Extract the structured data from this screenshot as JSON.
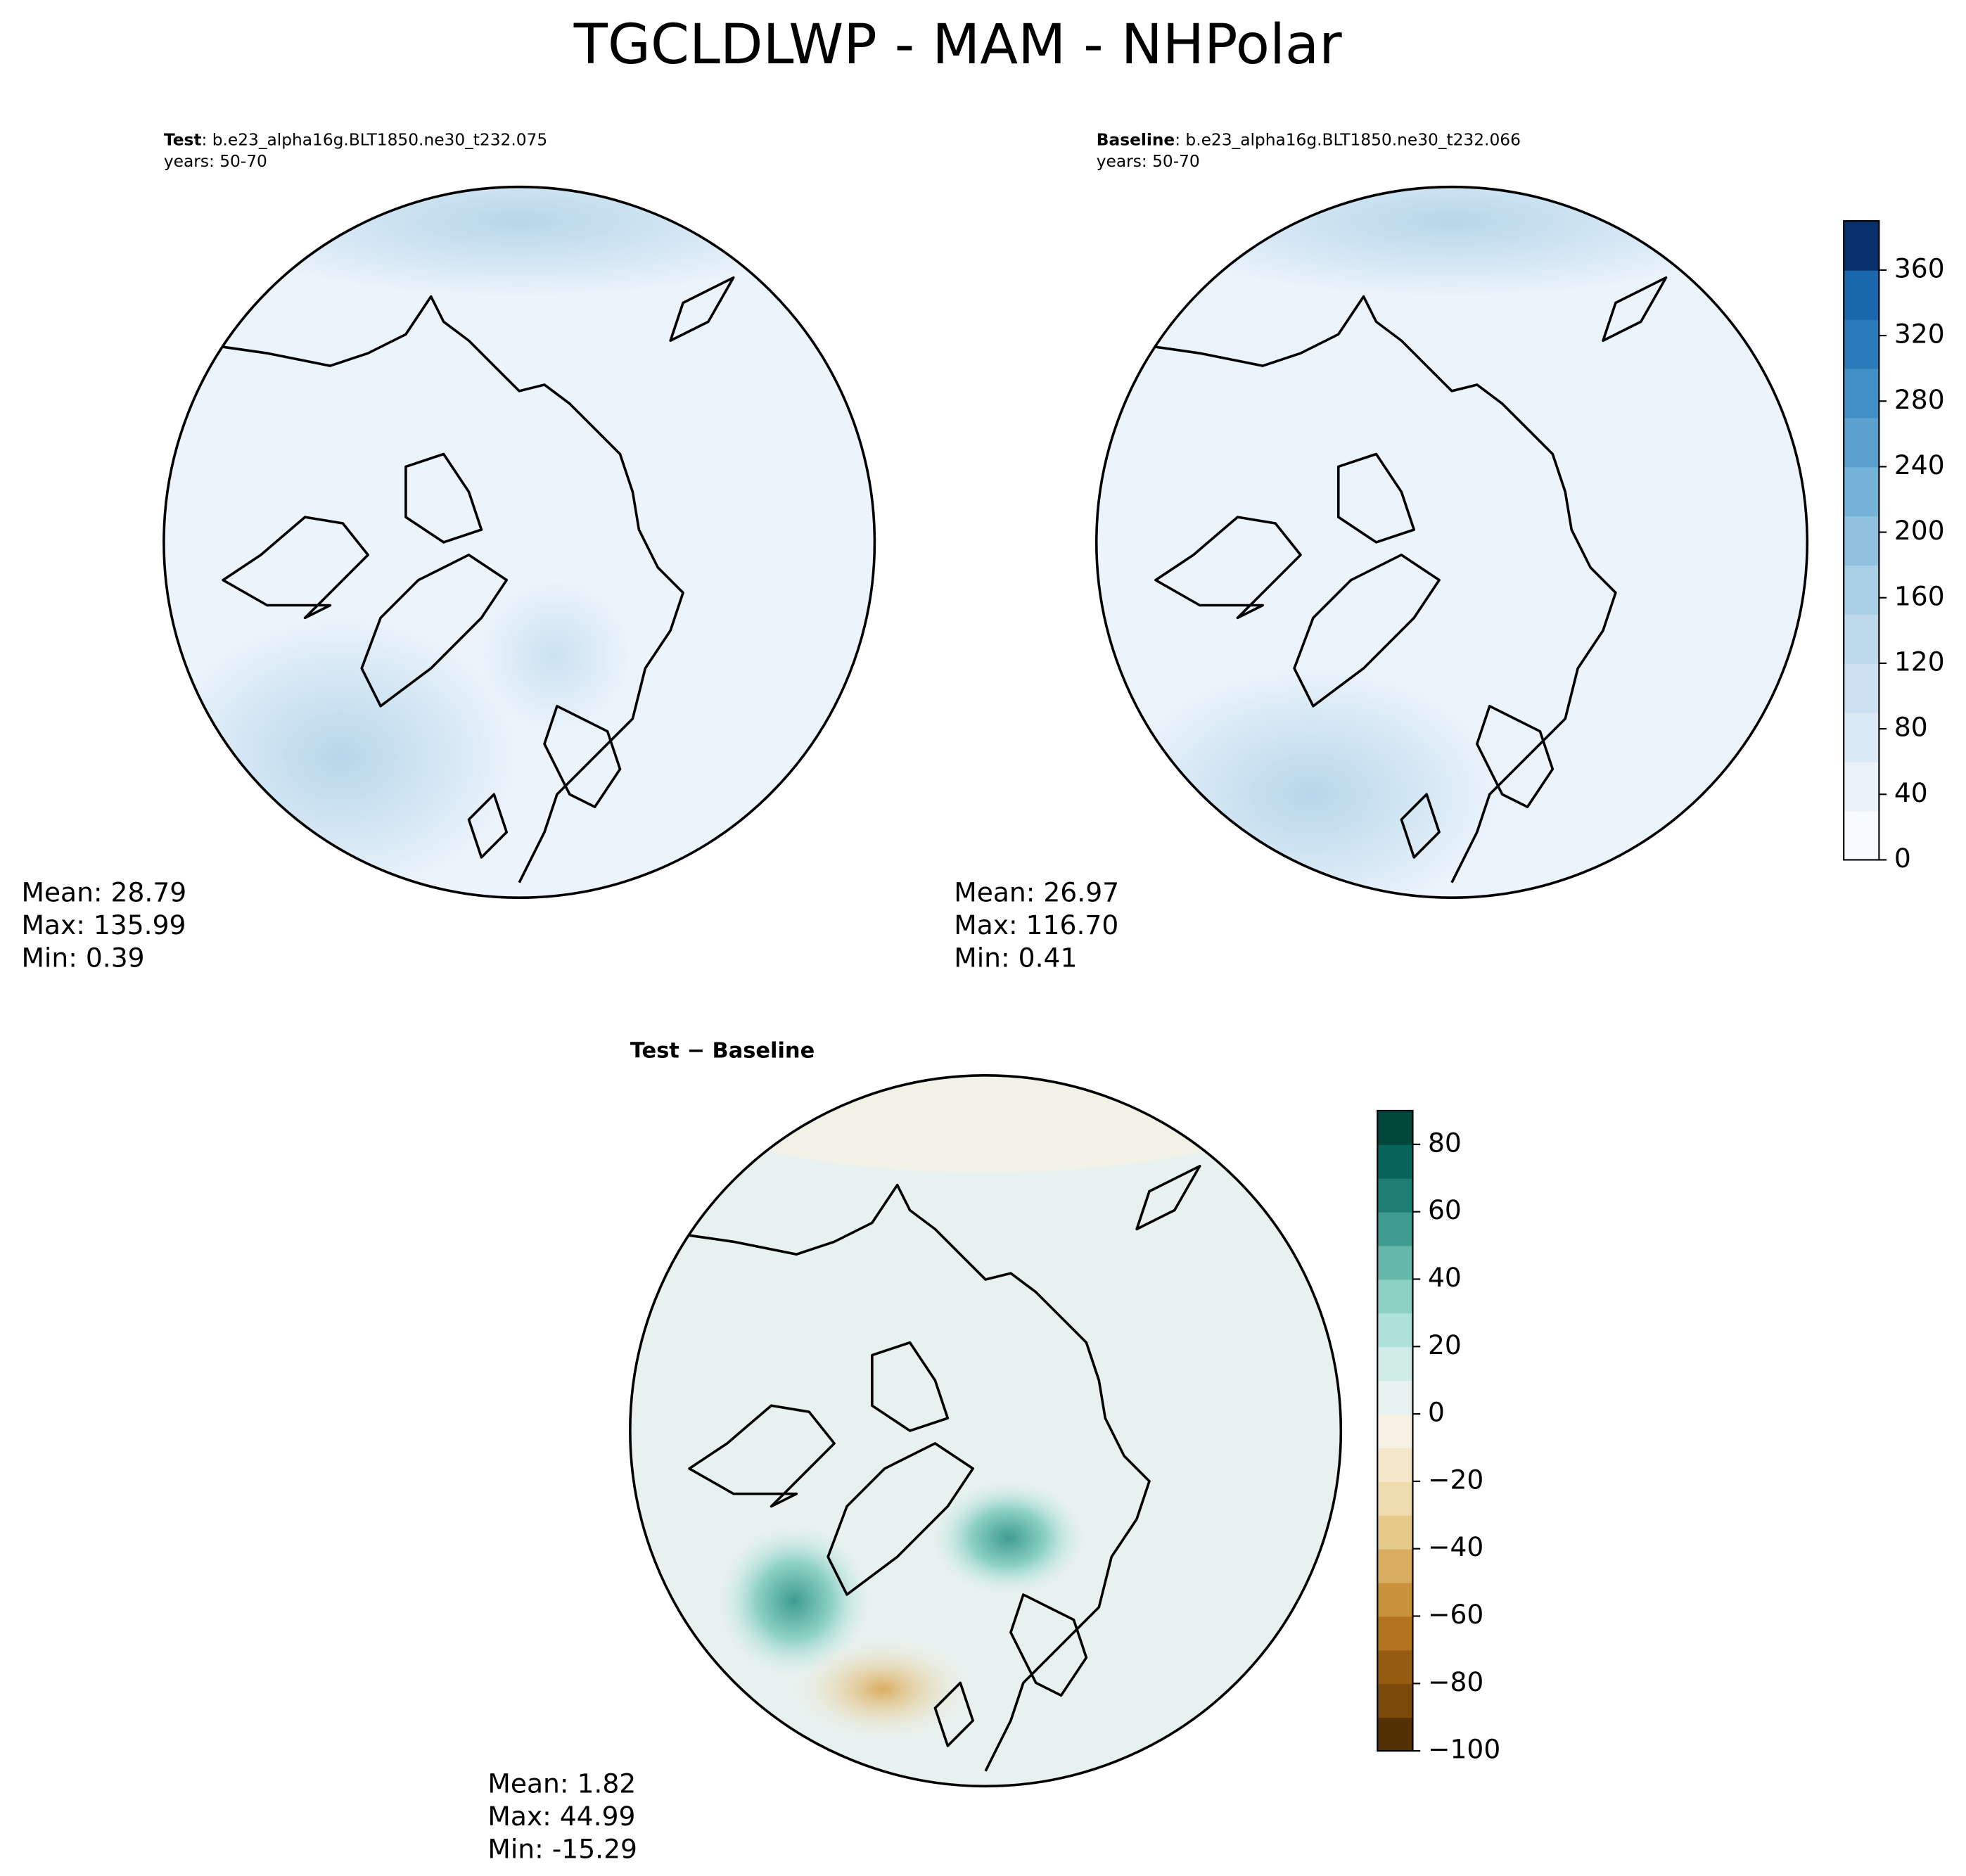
{
  "title": "TGCLDLWP - MAM - NHPolar",
  "panels": [
    {
      "case_label": "Test",
      "case_name": ": b.e23_alpha16g.BLT1850.ne30_t232.075",
      "years": "years: 50-70",
      "stats": [
        "Mean: 28.79",
        "Max: 135.99",
        "Min:  0.39"
      ]
    },
    {
      "case_label": "Baseline",
      "case_name": ": b.e23_alpha16g.BLT1850.ne30_t232.066",
      "years": "years: 50-70",
      "stats": [
        "Mean: 26.97",
        "Max: 116.70",
        "Min:  0.41"
      ]
    },
    {
      "case_label": "Test − Baseline",
      "stats": [
        "Mean:  1.82",
        "Max: 44.99",
        "Min: -15.29"
      ]
    }
  ],
  "colorbars": [
    {
      "lim": [
        0,
        390
      ],
      "ticks": [
        0,
        40,
        80,
        120,
        160,
        200,
        240,
        280,
        320,
        360
      ],
      "colors": [
        "#f7fbff",
        "#e9f2fa",
        "#dbe9f6",
        "#cde0f1",
        "#bed8ec",
        "#a9cfe5",
        "#8fc1de",
        "#74b2d7",
        "#5aa1cf",
        "#4090c5",
        "#2b7bba",
        "#1967ad",
        "#08306b"
      ]
    },
    {
      "lim": [
        -100,
        90
      ],
      "ticks": [
        {
          "value": -100,
          "label": "−100"
        },
        {
          "value": -80,
          "label": "−80"
        },
        {
          "value": -60,
          "label": "−60"
        },
        {
          "value": -40,
          "label": "−40"
        },
        {
          "value": -20,
          "label": "−20"
        },
        0,
        20,
        40,
        60,
        80
      ],
      "colors": [
        "#543005",
        "#7a4a0b",
        "#955c12",
        "#b2741f",
        "#c9913b",
        "#d9ad60",
        "#e6ca8c",
        "#efdcae",
        "#f4e8c9",
        "#f5f1e4",
        "#e7f1ef",
        "#d0ece6",
        "#b1e2d9",
        "#8dd1c4",
        "#66b8ab",
        "#3f9c91",
        "#1d7f74",
        "#06645a",
        "#00483c"
      ]
    }
  ]
}
